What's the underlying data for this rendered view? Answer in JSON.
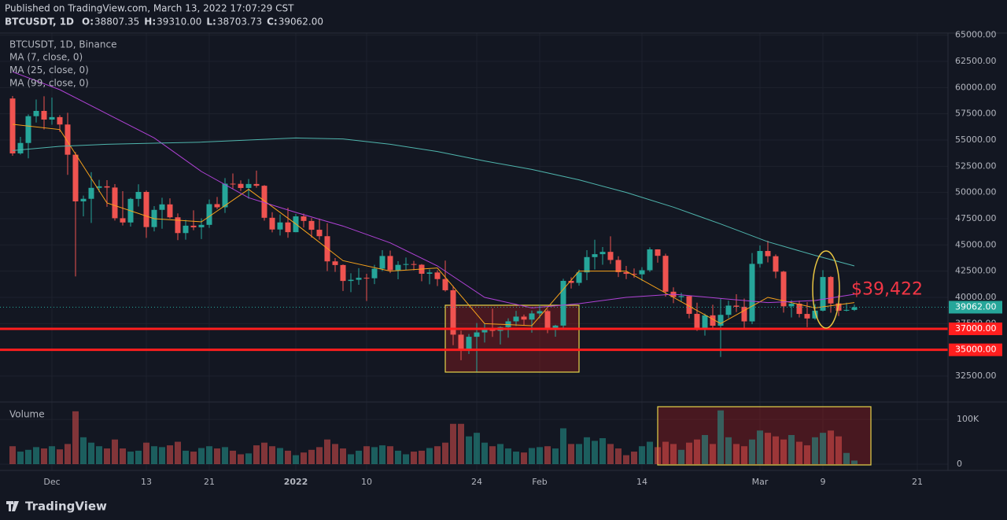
{
  "page": {
    "published": "Published on TradingView.com, March 13, 2022 17:07:29 CST",
    "symbol": "BTCUSDT, 1D",
    "logo": "TradingView"
  },
  "chart_data": [
    {
      "type": "candlestick",
      "title": "BTCUSDT, 1D, Binance",
      "ohlc_header": [
        {
          "key": "O:",
          "value": "38807.35"
        },
        {
          "key": "H:",
          "value": "39310.00"
        },
        {
          "key": "L:",
          "value": "38703.73"
        },
        {
          "key": "C:",
          "value": "39062.00"
        }
      ],
      "categories": [
        null,
        null,
        null,
        null,
        null,
        "Dec",
        null,
        null,
        null,
        null,
        null,
        null,
        null,
        null,
        null,
        null,
        null,
        "13",
        null,
        null,
        null,
        null,
        null,
        null,
        null,
        "21",
        null,
        null,
        null,
        null,
        null,
        null,
        null,
        null,
        null,
        null,
        "2022",
        null,
        null,
        null,
        null,
        null,
        null,
        null,
        null,
        "10",
        null,
        null,
        null,
        null,
        null,
        null,
        null,
        null,
        null,
        null,
        null,
        null,
        null,
        "24",
        null,
        null,
        null,
        null,
        null,
        null,
        null,
        "Feb",
        null,
        null,
        null,
        null,
        null,
        null,
        null,
        null,
        null,
        null,
        null,
        null,
        "14",
        null,
        null,
        null,
        null,
        null,
        null,
        null,
        null,
        null,
        null,
        null,
        null,
        null,
        null,
        "Mar",
        null,
        null,
        null,
        null,
        null,
        null,
        null,
        "9",
        null,
        null,
        null,
        null,
        null,
        null,
        null,
        null,
        null,
        null,
        null,
        "21",
        null,
        null
      ],
      "open": [
        58960,
        53726,
        54720,
        57274,
        57776,
        56950,
        57184,
        56480,
        53601,
        49152,
        49396,
        50441,
        50588,
        50471,
        47545,
        47140,
        49389,
        50053,
        46702,
        48343,
        48864,
        47632,
        46131,
        46834,
        46681,
        46914,
        48889,
        48588,
        50838,
        50821,
        50429,
        50809,
        50640,
        47588,
        46470,
        47145,
        46216,
        47722,
        47287,
        46446,
        45833,
        43432,
        43083,
        41566,
        41679,
        41864,
        41822,
        42736,
        43946,
        42592,
        43100,
        43177,
        43113,
        42250,
        42375,
        41744,
        40680,
        36445,
        35071,
        36244,
        36660,
        36958,
        36809,
        37160,
        37716,
        38166,
        37881,
        38466,
        38694,
        36896,
        37311,
        41574,
        41382,
        42380,
        43840,
        44118,
        44338,
        43565,
        42407,
        42244,
        42197,
        42586,
        44575,
        43961,
        40538,
        40030,
        40122,
        38431,
        37075,
        38286,
        37296,
        38333,
        39214,
        39105,
        37710,
        43194,
        44422,
        43925,
        42452,
        39148,
        39398,
        38420,
        37988,
        38731,
        41941,
        39422,
        38730,
        38807.35,
        null,
        null,
        null,
        null,
        null,
        null,
        null,
        null,
        null,
        null
      ],
      "high": [
        59200,
        55300,
        57445,
        58865,
        59176,
        59053,
        57375,
        57600,
        53859,
        49699,
        51936,
        51200,
        51171,
        50797,
        50125,
        49485,
        50777,
        50189,
        48700,
        49500,
        49436,
        48004,
        47392,
        48300,
        47537,
        49328,
        49576,
        51375,
        51810,
        51156,
        51281,
        52088,
        50704,
        48119,
        47900,
        48548,
        47954,
        47990,
        47570,
        47505,
        47070,
        43748,
        43145,
        42300,
        42786,
        42248,
        43100,
        44500,
        44458,
        43448,
        43800,
        43478,
        43180,
        42675,
        42576,
        43505,
        41100,
        36835,
        36499,
        37550,
        37545,
        38919,
        37234,
        38000,
        38720,
        38359,
        38744,
        39265,
        38855,
        37387,
        41772,
        41913,
        42656,
        44500,
        45492,
        44799,
        45821,
        43920,
        42999,
        42760,
        42876,
        44769,
        44580,
        44164,
        40959,
        40444,
        40148,
        39494,
        38450,
        39300,
        39843,
        39683,
        40300,
        39886,
        44225,
        44949,
        45400,
        44101,
        42527,
        39740,
        39693,
        39547,
        39362,
        42594,
        42039,
        40236,
        39486,
        39310,
        null,
        null,
        null,
        null,
        null,
        null,
        null,
        null,
        null,
        null
      ],
      "low": [
        53500,
        53610,
        53256,
        56666,
        56000,
        56458,
        55777,
        51680,
        42000,
        47727,
        47100,
        50039,
        48638,
        47320,
        46852,
        46751,
        48667,
        45672,
        46290,
        46547,
        47511,
        45456,
        45500,
        46406,
        45558,
        46630,
        48421,
        48050,
        50375,
        50142,
        49412,
        50449,
        47313,
        46201,
        45900,
        45678,
        46208,
        46654,
        45696,
        45500,
        42500,
        42430,
        40610,
        40501,
        41200,
        39650,
        41268,
        42500,
        42311,
        41725,
        42605,
        42578,
        41540,
        41250,
        41077,
        40553,
        35440,
        34008,
        34601,
        32917,
        35701,
        36234,
        35507,
        36155,
        37268,
        37351,
        36632,
        38000,
        36586,
        36250,
        37108,
        40843,
        41116,
        41645,
        42666,
        43117,
        43187,
        41938,
        41748,
        41870,
        41570,
        42427,
        43310,
        40073,
        39450,
        39639,
        38000,
        36800,
        36350,
        37036,
        34322,
        38014,
        38600,
        37000,
        37450,
        42836,
        43334,
        41832,
        38550,
        38088,
        38088,
        37155,
        37867,
        38656,
        38539,
        38223,
        38660,
        38703.73,
        null,
        null,
        null,
        null,
        null,
        null,
        null,
        null,
        null,
        null
      ],
      "close": [
        53726,
        54720,
        57274,
        57776,
        56950,
        57184,
        56480,
        53601,
        49152,
        49396,
        50441,
        50588,
        50471,
        47545,
        47140,
        49389,
        50053,
        46702,
        48343,
        48864,
        47632,
        46131,
        46834,
        46681,
        46914,
        48889,
        48588,
        50838,
        50821,
        50429,
        50809,
        50640,
        47588,
        46470,
        47145,
        46216,
        47722,
        47287,
        46446,
        45833,
        43432,
        43083,
        41566,
        41679,
        41864,
        41822,
        42736,
        43946,
        42592,
        43100,
        43177,
        43113,
        42250,
        42375,
        41744,
        40680,
        36445,
        35071,
        36244,
        36660,
        36958,
        36809,
        37160,
        37716,
        38166,
        37881,
        38466,
        38694,
        36896,
        37311,
        41574,
        41382,
        42380,
        43840,
        44118,
        44338,
        43565,
        42407,
        42244,
        42197,
        42586,
        44575,
        43961,
        40538,
        40030,
        40122,
        38431,
        37075,
        38286,
        37296,
        38333,
        39214,
        39105,
        37710,
        43194,
        44422,
        43925,
        42452,
        39148,
        39398,
        38420,
        37988,
        38731,
        41941,
        39422,
        38730,
        38807.35,
        39062,
        null,
        null,
        null,
        null,
        null,
        null,
        null,
        null,
        null,
        null
      ],
      "up_color": "#26a69a",
      "down_color": "#ef5350",
      "ylim": [
        30100,
        65200
      ],
      "yticks": [
        {
          "value": 32500,
          "label": "32500.00"
        },
        {
          "value": 35000,
          "label": "35000.00"
        },
        {
          "value": 37500,
          "label": "37500.00"
        },
        {
          "value": 40000,
          "label": "40000.00"
        },
        {
          "value": 42500,
          "label": "42500.00"
        },
        {
          "value": 45000,
          "label": "45000.00"
        },
        {
          "value": 47500,
          "label": "47500.00"
        },
        {
          "value": 50000,
          "label": "50000.00"
        },
        {
          "value": 52500,
          "label": "52500.00"
        },
        {
          "value": 55000,
          "label": "55000.00"
        },
        {
          "value": 57500,
          "label": "57500.00"
        },
        {
          "value": 60000,
          "label": "60000.00"
        },
        {
          "value": 62500,
          "label": "62500.00"
        },
        {
          "value": 65000,
          "label": "65000.00"
        }
      ],
      "grid": true,
      "lines": [
        {
          "name": "MA (7, close, 0)",
          "color": "#f7a21b",
          "x": [
            0,
            6,
            12,
            18,
            24,
            30,
            36,
            42,
            48,
            54,
            60,
            66,
            72,
            78,
            84,
            90,
            96,
            102,
            107
          ],
          "values": [
            56500,
            56000,
            49000,
            47500,
            47200,
            50300,
            47000,
            43500,
            42500,
            42800,
            37500,
            37300,
            42500,
            42500,
            40000,
            37500,
            40000,
            39000,
            39500
          ]
        },
        {
          "name": "MA (25, close, 0)",
          "color": "#b042d6",
          "x": [
            0,
            6,
            12,
            18,
            24,
            30,
            36,
            42,
            48,
            54,
            60,
            66,
            72,
            78,
            84,
            90,
            96,
            102,
            107
          ],
          "values": [
            61500,
            59800,
            57500,
            55200,
            52000,
            49500,
            48100,
            46800,
            45200,
            43000,
            40000,
            39000,
            39400,
            40000,
            40300,
            39900,
            39500,
            39700,
            40300
          ]
        },
        {
          "name": "MA (99, close, 0)",
          "color": "#4fb5ad",
          "x": [
            0,
            6,
            12,
            18,
            24,
            30,
            36,
            42,
            48,
            54,
            60,
            66,
            72,
            78,
            84,
            90,
            96,
            102,
            107
          ],
          "values": [
            54000,
            54400,
            54600,
            54700,
            54800,
            55000,
            55200,
            55100,
            54600,
            53900,
            53000,
            52200,
            51200,
            50000,
            48600,
            47000,
            45300,
            44000,
            43000
          ]
        }
      ],
      "hlines": [
        {
          "value": 37000,
          "label": "37000.00"
        },
        {
          "value": 35000,
          "label": "35000.00"
        }
      ],
      "hline_color": "#ff1e1e",
      "last_price": {
        "value": 39062,
        "label": "39062.00",
        "color": "#26a69a"
      },
      "annotation": {
        "value": 39422,
        "label": "$39,422",
        "color": "#f23645"
      }
    },
    {
      "type": "bar",
      "title": "Volume",
      "values": [
        40000,
        28000,
        32000,
        38000,
        35000,
        40000,
        33000,
        45000,
        118000,
        60000,
        48000,
        40000,
        35000,
        55000,
        35000,
        28000,
        30000,
        48000,
        40000,
        38000,
        42000,
        50000,
        30000,
        28000,
        36000,
        40000,
        35000,
        38000,
        30000,
        22000,
        24000,
        42000,
        48000,
        40000,
        36000,
        30000,
        20000,
        26000,
        32000,
        38000,
        55000,
        45000,
        35000,
        22000,
        30000,
        40000,
        38000,
        42000,
        40000,
        30000,
        22000,
        28000,
        30000,
        36000,
        40000,
        48000,
        90000,
        90000,
        62000,
        70000,
        48000,
        40000,
        45000,
        35000,
        28000,
        26000,
        36000,
        38000,
        40000,
        35000,
        80000,
        45000,
        45000,
        60000,
        52000,
        58000,
        45000,
        35000,
        20000,
        28000,
        40000,
        50000,
        38000,
        50000,
        45000,
        32000,
        48000,
        55000,
        65000,
        45000,
        120000,
        60000,
        45000,
        40000,
        55000,
        75000,
        70000,
        62000,
        55000,
        65000,
        50000,
        42000,
        60000,
        70000,
        75000,
        62000,
        25000,
        8000,
        null,
        null,
        null,
        null,
        null,
        null,
        null,
        null,
        null,
        null
      ],
      "ylim": [
        0,
        137000
      ],
      "yticks": [
        0,
        {
          "value": 100000,
          "label": "100K"
        }
      ]
    }
  ]
}
